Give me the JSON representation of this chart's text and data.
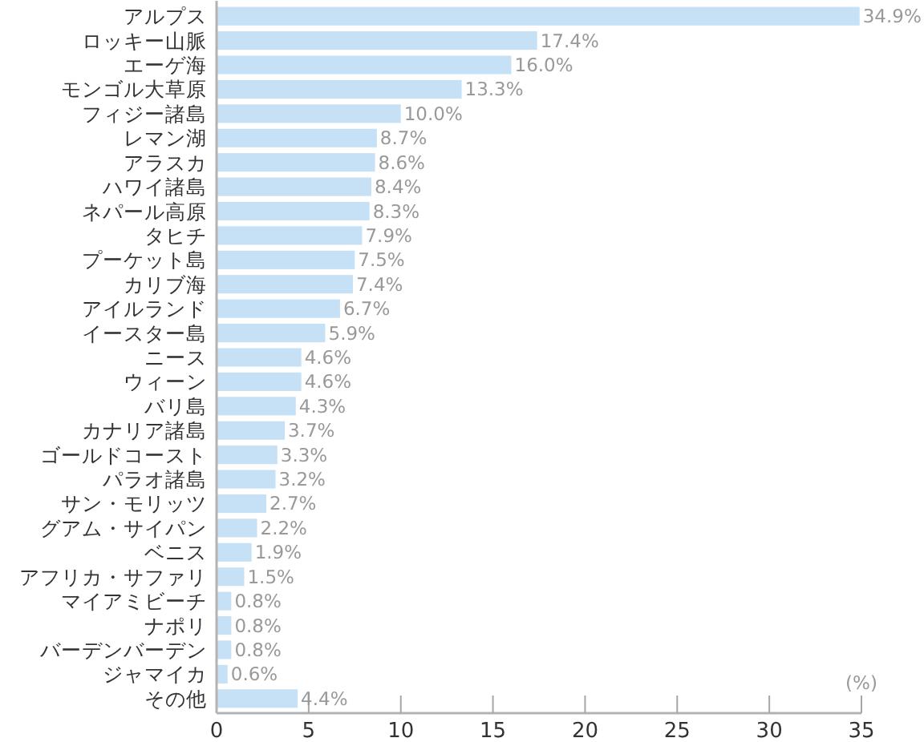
{
  "chart_data": {
    "type": "bar",
    "orientation": "horizontal",
    "categories": [
      "アルプス",
      "ロッキー山脈",
      "エーゲ海",
      "モンゴル大草原",
      "フィジー諸島",
      "レマン湖",
      "アラスカ",
      "ハワイ諸島",
      "ネパール高原",
      "タヒチ",
      "プーケット島",
      "カリブ海",
      "アイルランド",
      "イースター島",
      "ニース",
      "ウィーン",
      "バリ島",
      "カナリア諸島",
      "ゴールドコースト",
      "パラオ諸島",
      "サン・モリッツ",
      "グアム・サイパン",
      "ベニス",
      "アフリカ・サファリ",
      "マイアミビーチ",
      "ナポリ",
      "バーデンバーデン",
      "ジャマイカ",
      "その他"
    ],
    "values": [
      34.9,
      17.4,
      16.0,
      13.3,
      10.0,
      8.7,
      8.6,
      8.4,
      8.3,
      7.9,
      7.5,
      7.4,
      6.7,
      5.9,
      4.6,
      4.6,
      4.3,
      3.7,
      3.3,
      3.2,
      2.7,
      2.2,
      1.9,
      1.5,
      0.8,
      0.8,
      0.8,
      0.6,
      4.4
    ],
    "value_labels": [
      "34.9%",
      "17.4%",
      "16.0%",
      "13.3%",
      "10.0%",
      "8.7%",
      "8.6%",
      "8.4%",
      "8.3%",
      "7.9%",
      "7.5%",
      "7.4%",
      "6.7%",
      "5.9%",
      "4.6%",
      "4.6%",
      "4.3%",
      "3.7%",
      "3.3%",
      "3.2%",
      "2.7%",
      "2.2%",
      "1.9%",
      "1.5%",
      "0.8%",
      "0.8%",
      "0.8%",
      "0.6%",
      "4.4%"
    ],
    "color": "#c6e1f5",
    "xlim": [
      0,
      35
    ],
    "xticks": [
      0,
      5,
      10,
      15,
      20,
      25,
      30,
      35
    ],
    "xlabel": "(%)"
  }
}
